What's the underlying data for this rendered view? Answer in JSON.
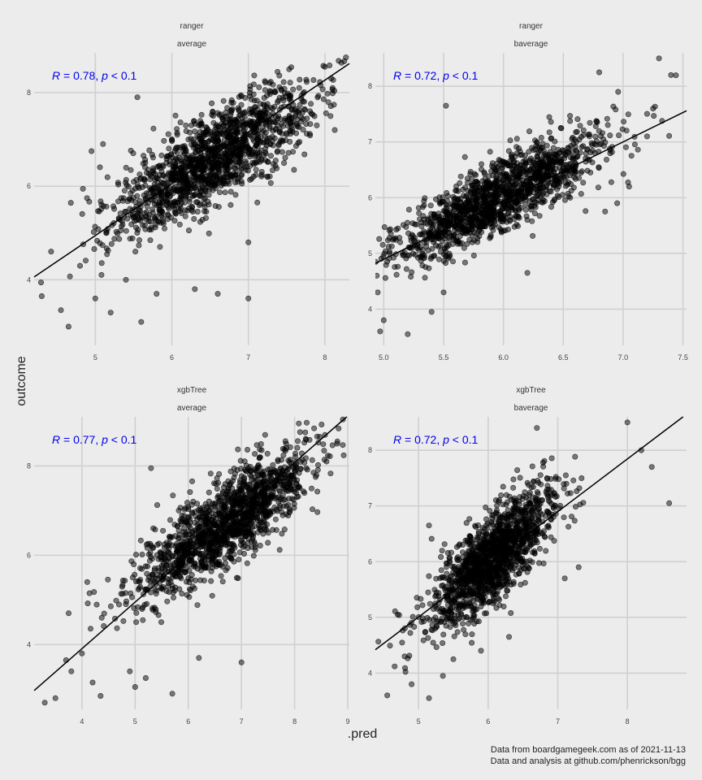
{
  "chart_data": {
    "type": "scatter",
    "x_label": ".pred",
    "y_label": "outcome",
    "caption": [
      "Data from boardgamegeek.com as of 2021-11-13",
      "Data and analysis at github.com/phenrickson/bgg"
    ],
    "colors": {
      "points": "#000000",
      "fit_line": "#000000",
      "annotation": "#0000ee",
      "grid": "#d0d0d0",
      "background": "#ececec"
    },
    "grid": true,
    "panels": [
      {
        "model": "ranger",
        "outcome": "average",
        "annotation": {
          "r": "0.78",
          "p": "0.1"
        },
        "xlim": [
          4.2,
          8.32
        ],
        "ylim": [
          2.6,
          8.85
        ],
        "x_ticks": [
          5,
          6,
          7,
          8
        ],
        "y_ticks": [
          4,
          6,
          8
        ],
        "fit_line": {
          "x": [
            4.2,
            8.32
          ],
          "y": [
            4.06,
            8.62
          ]
        },
        "cloud": {
          "center": [
            6.55,
            6.6
          ],
          "direction": [
            0.62,
            0.78
          ],
          "major_sd": 1.0,
          "minor_sd": 0.32
        },
        "outliers": [
          {
            "x": 4.55,
            "y": 3.35
          },
          {
            "x": 4.65,
            "y": 3.0
          },
          {
            "x": 4.8,
            "y": 4.3
          },
          {
            "x": 5.0,
            "y": 3.6
          },
          {
            "x": 5.2,
            "y": 3.3
          },
          {
            "x": 5.4,
            "y": 4.0
          },
          {
            "x": 5.6,
            "y": 3.1
          },
          {
            "x": 5.8,
            "y": 3.7
          },
          {
            "x": 6.3,
            "y": 3.8
          },
          {
            "x": 6.6,
            "y": 3.7
          },
          {
            "x": 7.0,
            "y": 3.6
          },
          {
            "x": 4.3,
            "y": 3.65
          },
          {
            "x": 4.95,
            "y": 6.75
          },
          {
            "x": 5.55,
            "y": 7.9
          },
          {
            "x": 5.1,
            "y": 6.9
          },
          {
            "x": 7.0,
            "y": 4.8
          },
          {
            "x": 8.1,
            "y": 8.1
          },
          {
            "x": 8.0,
            "y": 8.55
          }
        ]
      },
      {
        "model": "ranger",
        "outcome": "baverage",
        "annotation": {
          "r": "0.72",
          "p": "0.1"
        },
        "xlim": [
          4.93,
          7.53
        ],
        "ylim": [
          3.35,
          8.6
        ],
        "x_ticks": [
          5.0,
          5.5,
          6.0,
          6.5,
          7.0,
          7.5
        ],
        "y_ticks": [
          4,
          5,
          6,
          7,
          8
        ],
        "fit_line": {
          "x": [
            4.93,
            7.53
          ],
          "y": [
            4.82,
            7.56
          ]
        },
        "cloud": {
          "center": [
            5.95,
            6.0
          ],
          "direction": [
            0.6,
            0.8
          ],
          "major_sd": 0.7,
          "minor_sd": 0.2
        },
        "outliers": [
          {
            "x": 4.95,
            "y": 4.3
          },
          {
            "x": 4.97,
            "y": 3.6
          },
          {
            "x": 5.0,
            "y": 3.8
          },
          {
            "x": 5.2,
            "y": 3.55
          },
          {
            "x": 5.4,
            "y": 3.95
          },
          {
            "x": 5.5,
            "y": 4.3
          },
          {
            "x": 5.05,
            "y": 5.0
          },
          {
            "x": 5.52,
            "y": 7.65
          },
          {
            "x": 6.2,
            "y": 4.65
          },
          {
            "x": 6.8,
            "y": 8.25
          },
          {
            "x": 7.3,
            "y": 8.5
          },
          {
            "x": 7.4,
            "y": 8.2
          },
          {
            "x": 7.25,
            "y": 7.6
          },
          {
            "x": 7.05,
            "y": 6.2
          },
          {
            "x": 6.85,
            "y": 5.75
          },
          {
            "x": 6.95,
            "y": 5.9
          },
          {
            "x": 7.2,
            "y": 7.1
          }
        ]
      },
      {
        "model": "xgbTree",
        "outcome": "average",
        "annotation": {
          "r": "0.77",
          "p": "0.1"
        },
        "xlim": [
          3.1,
          9.03
        ],
        "ylim": [
          2.55,
          9.1
        ],
        "x_ticks": [
          4,
          5,
          6,
          7,
          8,
          9
        ],
        "y_ticks": [
          4,
          6,
          8
        ],
        "fit_line": {
          "x": [
            3.1,
            8.98
          ],
          "y": [
            2.97,
            9.1
          ]
        },
        "cloud": {
          "center": [
            6.7,
            6.7
          ],
          "direction": [
            0.7,
            0.72
          ],
          "major_sd": 1.1,
          "minor_sd": 0.35
        },
        "outliers": [
          {
            "x": 3.3,
            "y": 2.7
          },
          {
            "x": 3.5,
            "y": 2.8
          },
          {
            "x": 3.7,
            "y": 3.65
          },
          {
            "x": 3.8,
            "y": 3.4
          },
          {
            "x": 4.0,
            "y": 3.8
          },
          {
            "x": 4.2,
            "y": 3.15
          },
          {
            "x": 4.35,
            "y": 2.85
          },
          {
            "x": 4.9,
            "y": 3.4
          },
          {
            "x": 5.0,
            "y": 3.05
          },
          {
            "x": 5.2,
            "y": 3.25
          },
          {
            "x": 5.7,
            "y": 2.9
          },
          {
            "x": 6.2,
            "y": 3.7
          },
          {
            "x": 7.0,
            "y": 3.6
          },
          {
            "x": 5.3,
            "y": 7.95
          },
          {
            "x": 8.8,
            "y": 8.5
          },
          {
            "x": 8.6,
            "y": 8.1
          },
          {
            "x": 8.2,
            "y": 8.75
          },
          {
            "x": 3.75,
            "y": 4.7
          },
          {
            "x": 4.1,
            "y": 5.4
          }
        ]
      },
      {
        "model": "xgbTree",
        "outcome": "baverage",
        "annotation": {
          "r": "0.72",
          "p": "0.1"
        },
        "xlim": [
          4.38,
          8.85
        ],
        "ylim": [
          3.35,
          8.6
        ],
        "x_ticks": [
          5,
          6,
          7,
          8
        ],
        "y_ticks": [
          4,
          5,
          6,
          7,
          8
        ],
        "fit_line": {
          "x": [
            4.38,
            8.8
          ],
          "y": [
            4.42,
            8.6
          ]
        },
        "cloud": {
          "center": [
            6.05,
            6.05
          ],
          "direction": [
            0.55,
            0.83
          ],
          "major_sd": 0.75,
          "minor_sd": 0.25
        },
        "outliers": [
          {
            "x": 4.8,
            "y": 4.3
          },
          {
            "x": 4.9,
            "y": 3.8
          },
          {
            "x": 4.55,
            "y": 3.6
          },
          {
            "x": 5.15,
            "y": 3.55
          },
          {
            "x": 5.35,
            "y": 3.95
          },
          {
            "x": 5.5,
            "y": 4.25
          },
          {
            "x": 6.3,
            "y": 4.65
          },
          {
            "x": 5.15,
            "y": 6.65
          },
          {
            "x": 6.7,
            "y": 8.4
          },
          {
            "x": 8.0,
            "y": 8.5
          },
          {
            "x": 8.2,
            "y": 8.0
          },
          {
            "x": 8.35,
            "y": 7.7
          },
          {
            "x": 8.6,
            "y": 7.05
          },
          {
            "x": 7.1,
            "y": 5.7
          },
          {
            "x": 7.3,
            "y": 5.9
          },
          {
            "x": 4.7,
            "y": 5.05
          }
        ]
      }
    ]
  }
}
